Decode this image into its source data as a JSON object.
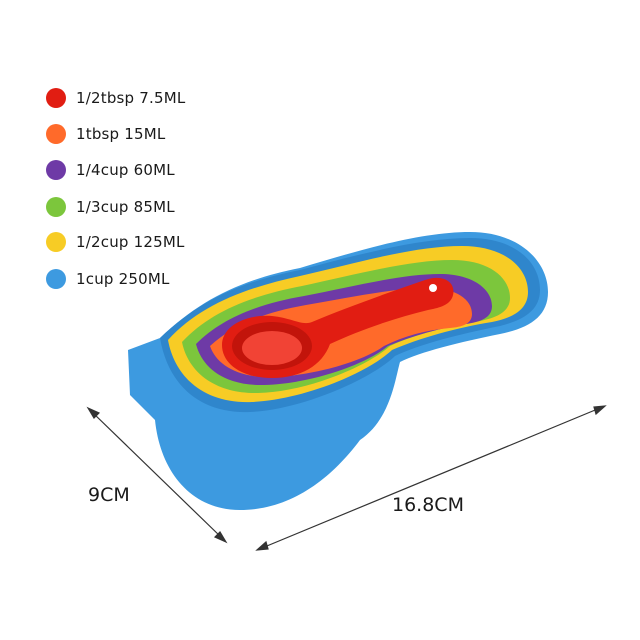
{
  "legend": {
    "items": [
      {
        "label": "1/2tbsp 7.5ML",
        "color": "#e11d12"
      },
      {
        "label": "1tbsp 15ML",
        "color": "#ff6a2a"
      },
      {
        "label": "1/4cup 60ML",
        "color": "#6e3aa6"
      },
      {
        "label": "1/3cup 85ML",
        "color": "#7cc63c"
      },
      {
        "label": "1/2cup 125ML",
        "color": "#f7cc25"
      },
      {
        "label": "1cup 250ML",
        "color": "#3d9ae0"
      }
    ]
  },
  "dimensions": {
    "width_label": "9CM",
    "length_label": "16.8CM"
  }
}
